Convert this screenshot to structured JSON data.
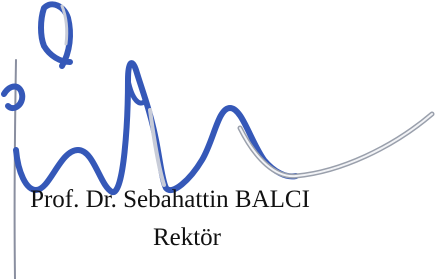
{
  "signature_block": {
    "name": "Prof. Dr. Sebahattin BALCI",
    "title": "Rektör"
  }
}
